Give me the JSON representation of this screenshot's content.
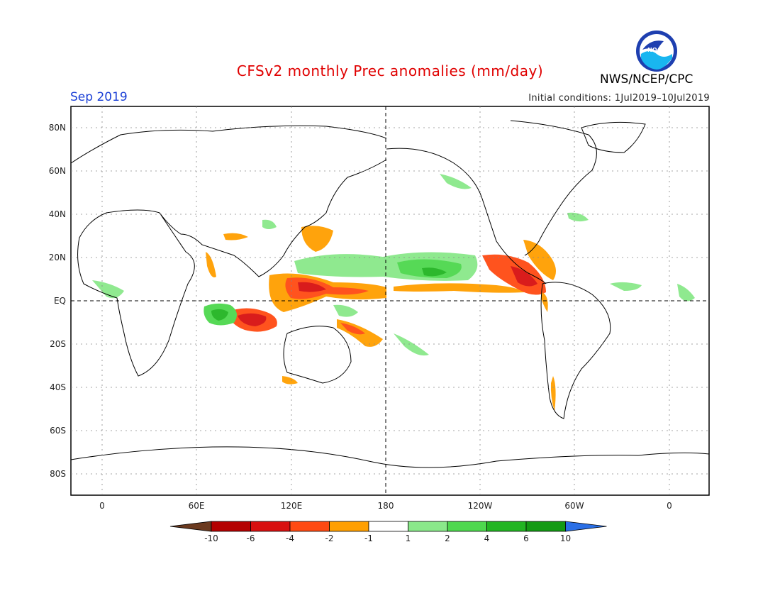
{
  "header": {
    "title": "CFSv2 monthly Prec anomalies (mm/day)",
    "month": "Sep 2019",
    "initial_conditions": "Initial conditions: 1Jul2019–10Jul2019",
    "agency": "NWS/NCEP/CPC",
    "logo_text": "NOAA"
  },
  "map": {
    "lat_labels": [
      "80N",
      "60N",
      "40N",
      "20N",
      "EQ",
      "20S",
      "40S",
      "60S",
      "80S"
    ],
    "lon_labels": [
      "0",
      "60E",
      "120E",
      "180",
      "120W",
      "60W",
      "0"
    ],
    "projection": "cylindrical equidistant, centered on 180"
  },
  "legend": {
    "tick_labels": [
      "-10",
      "-6",
      "-4",
      "-2",
      "-1",
      "1",
      "2",
      "4",
      "6",
      "10"
    ],
    "colors": [
      "#6b3a1f",
      "#b40000",
      "#d81010",
      "#ff4a12",
      "#ff9f00",
      "#ffffff",
      "#8ae88a",
      "#4ed84e",
      "#22b522",
      "#139a13",
      "#2a6fe6"
    ]
  },
  "colors": {
    "title": "#e00000",
    "month": "#1a3fd6",
    "dry_strong": "#d81010",
    "dry": "#ff4a12",
    "dry_weak": "#ff9f00",
    "wet_weak": "#8ae88a",
    "wet": "#4ed84e",
    "wet_strong": "#22b522"
  }
}
